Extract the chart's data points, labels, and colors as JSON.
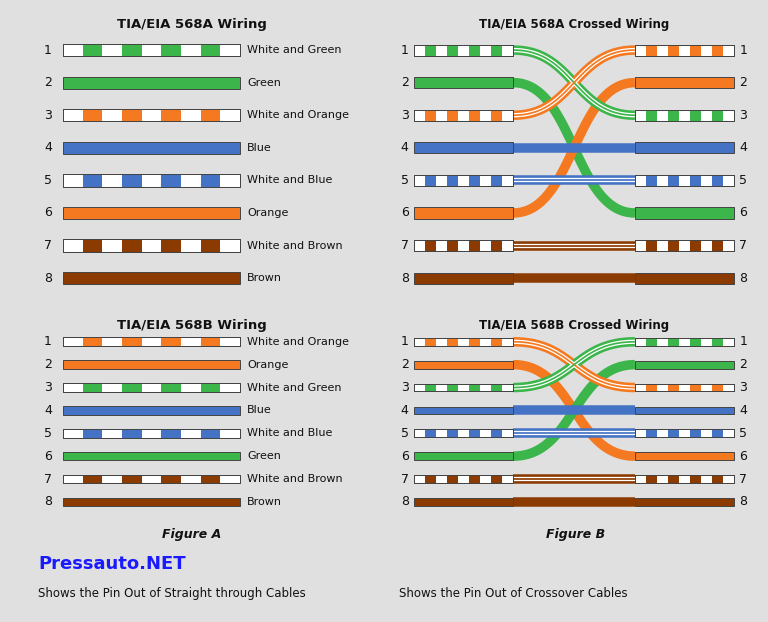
{
  "bg_color": "#e0e0e0",
  "title_color": "#111111",
  "colors": {
    "green": "#3cb54a",
    "orange": "#f47920",
    "blue": "#4472c4",
    "brown": "#8b3a00",
    "dark_red": "#8b0000",
    "white": "#ffffff"
  },
  "568A_pins": [
    {
      "label": "White and Green",
      "solid": false,
      "color": "green"
    },
    {
      "label": "Green",
      "solid": true,
      "color": "green"
    },
    {
      "label": "White and Orange",
      "solid": false,
      "color": "orange"
    },
    {
      "label": "Blue",
      "solid": true,
      "color": "blue"
    },
    {
      "label": "White and Blue",
      "solid": false,
      "color": "blue"
    },
    {
      "label": "Orange",
      "solid": true,
      "color": "orange"
    },
    {
      "label": "White and Brown",
      "solid": false,
      "color": "brown"
    },
    {
      "label": "Brown",
      "solid": true,
      "color": "brown"
    }
  ],
  "568B_pins": [
    {
      "label": "White and Orange",
      "solid": false,
      "color": "orange"
    },
    {
      "label": "Orange",
      "solid": true,
      "color": "orange"
    },
    {
      "label": "White and Green",
      "solid": false,
      "color": "green"
    },
    {
      "label": "Blue",
      "solid": true,
      "color": "blue"
    },
    {
      "label": "White and Blue",
      "solid": false,
      "color": "blue"
    },
    {
      "label": "Green",
      "solid": true,
      "color": "green"
    },
    {
      "label": "White and Brown",
      "solid": false,
      "color": "brown"
    },
    {
      "label": "Brown",
      "solid": true,
      "color": "brown"
    }
  ],
  "crossA_map": [
    2,
    5,
    0,
    3,
    4,
    1,
    6,
    7
  ],
  "crossB_map": [
    2,
    5,
    0,
    3,
    4,
    1,
    6,
    7
  ]
}
